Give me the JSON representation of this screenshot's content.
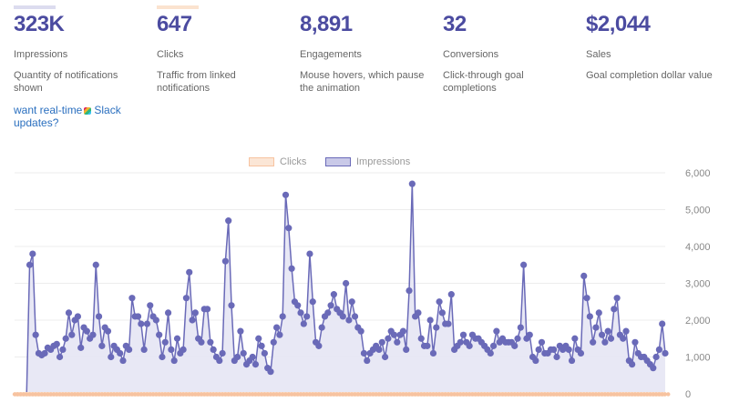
{
  "stats": [
    {
      "value": "323K",
      "label": "Impressions",
      "desc": "Quantity of notifications shown"
    },
    {
      "value": "647",
      "label": "Clicks",
      "desc": "Traffic from linked notifications"
    },
    {
      "value": "8,891",
      "label": "Engagements",
      "desc": "Mouse hovers, which pause the animation"
    },
    {
      "value": "32",
      "label": "Conversions",
      "desc": "Click-through goal completions"
    },
    {
      "value": "$2,044",
      "label": "Sales",
      "desc": "Goal completion dollar value"
    }
  ],
  "promo": {
    "prefix": "want real-time",
    "suffix": "Slack updates?",
    "icon": "slack-icon"
  },
  "legend": [
    {
      "name": "Clicks",
      "color": "#f7c3a0"
    },
    {
      "name": "Impressions",
      "color": "#6a6ab8"
    }
  ],
  "colors": {
    "accent": "#4b4ba0",
    "impressions": "#6a6ab8",
    "impressions_fill": "#e6e6f4",
    "clicks": "#f7c3a0"
  },
  "chart_data": {
    "type": "area",
    "title": "",
    "xlabel": "",
    "ylabel": "",
    "ylim": [
      0,
      6000
    ],
    "yticks": [
      "0",
      "1,000",
      "2,000",
      "3,000",
      "4,000",
      "5,000",
      "6,000"
    ],
    "grid": true,
    "legend_position": "top-center",
    "series": [
      {
        "name": "Impressions",
        "values": [
          0,
          0,
          0,
          0,
          0,
          3500,
          3800,
          1600,
          1100,
          1050,
          1100,
          1250,
          1200,
          1300,
          1350,
          1000,
          1200,
          1500,
          2200,
          1600,
          2000,
          2100,
          1250,
          1800,
          1700,
          1500,
          1600,
          3500,
          2100,
          1300,
          1800,
          1700,
          1000,
          1300,
          1200,
          1100,
          900,
          1300,
          1200,
          2600,
          2100,
          2100,
          1900,
          1200,
          1900,
          2400,
          2100,
          2000,
          1600,
          1000,
          1400,
          2200,
          1200,
          900,
          1500,
          1100,
          1200,
          2600,
          3300,
          2000,
          2200,
          1500,
          1400,
          2300,
          2300,
          1400,
          1200,
          1000,
          900,
          1100,
          3600,
          4700,
          2400,
          900,
          1000,
          1700,
          1100,
          800,
          900,
          1000,
          800,
          1500,
          1300,
          1100,
          700,
          600,
          1400,
          1800,
          1600,
          2100,
          5400,
          4500,
          3400,
          2500,
          2400,
          2200,
          1900,
          2100,
          3800,
          2500,
          1400,
          1300,
          1800,
          2100,
          2200,
          2400,
          2700,
          2300,
          2200,
          2100,
          3000,
          2000,
          2500,
          2100,
          1800,
          1700,
          1100,
          900,
          1100,
          1200,
          1300,
          1200,
          1400,
          1000,
          1500,
          1700,
          1600,
          1400,
          1600,
          1700,
          1200,
          2800,
          5700,
          2100,
          2200,
          1500,
          1300,
          1300,
          2000,
          1100,
          1800,
          2500,
          2200,
          1900,
          1900,
          2700,
          1200,
          1300,
          1400,
          1600,
          1400,
          1300,
          1600,
          1500,
          1500,
          1400,
          1300,
          1200,
          1100,
          1300,
          1700,
          1400,
          1500,
          1400,
          1400,
          1400,
          1300,
          1500,
          1800,
          3500,
          1500,
          1600,
          1000,
          900,
          1200,
          1400,
          1100,
          1100,
          1200,
          1200,
          1000,
          1300,
          1200,
          1300,
          1200,
          900,
          1500,
          1200,
          1100,
          3200,
          2600,
          2100,
          1400,
          1800,
          2200,
          1600,
          1400,
          1700,
          1500,
          2300,
          2600,
          1600,
          1500,
          1700,
          900,
          800,
          1400,
          1100,
          1000,
          1000,
          900,
          800,
          700,
          1000,
          1200,
          1900,
          1100
        ]
      },
      {
        "name": "Clicks",
        "values": [
          0,
          0,
          0,
          0,
          0,
          1,
          2,
          1,
          1,
          1,
          1,
          1,
          1,
          1,
          2,
          1,
          1,
          2,
          2,
          1,
          2,
          2,
          1,
          2,
          2,
          2,
          2,
          4,
          3,
          2,
          3,
          2,
          1,
          2,
          1,
          1,
          1,
          2,
          2,
          4,
          3,
          3,
          3,
          2,
          3,
          4,
          3,
          3,
          2,
          1,
          2,
          3,
          2,
          1,
          2,
          2,
          2,
          4,
          5,
          3,
          3,
          2,
          2,
          3,
          3,
          2,
          2,
          1,
          1,
          2,
          5,
          6,
          3,
          1,
          1,
          2,
          1,
          1,
          1,
          1,
          1,
          2,
          2,
          2,
          1,
          1,
          2,
          3,
          2,
          3,
          7,
          6,
          5,
          3,
          3,
          3,
          3,
          3,
          5,
          3,
          2,
          2,
          3,
          3,
          3,
          3,
          4,
          3,
          3,
          3,
          4,
          3,
          3,
          3,
          2,
          2,
          2,
          1,
          2,
          2,
          2,
          2,
          2,
          1,
          2,
          2,
          2,
          2,
          2,
          2,
          2,
          4,
          7,
          3,
          3,
          2,
          2,
          2,
          3,
          2,
          3,
          3,
          3,
          3,
          3,
          4,
          2,
          2,
          2,
          2,
          2,
          2,
          2,
          2,
          2,
          2,
          2,
          2,
          2,
          2,
          2,
          2,
          2,
          2,
          2,
          2,
          2,
          2,
          2,
          3,
          5,
          2,
          2,
          1,
          1,
          2,
          2,
          2,
          2,
          2,
          2,
          1,
          2,
          2,
          2,
          2,
          1,
          2,
          2,
          2,
          4,
          4,
          3,
          2,
          3,
          3,
          2,
          2,
          2,
          2,
          3,
          4,
          2,
          2,
          2,
          1,
          1,
          2,
          2,
          1,
          1,
          1,
          1,
          1,
          1,
          2,
          3,
          2
        ]
      }
    ]
  }
}
